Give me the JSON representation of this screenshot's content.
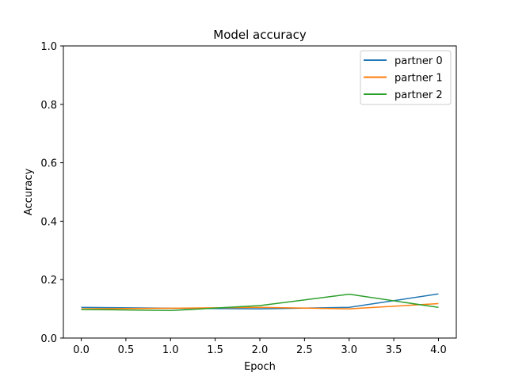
{
  "chart_data": {
    "type": "line",
    "title": "Model accuracy",
    "xlabel": "Epoch",
    "ylabel": "Accuracy",
    "xlim": [
      -0.2,
      4.2
    ],
    "ylim": [
      0.0,
      1.0
    ],
    "xticks": [
      "0.0",
      "0.5",
      "1.0",
      "1.5",
      "2.0",
      "2.5",
      "3.0",
      "3.5",
      "4.0"
    ],
    "yticks": [
      "0.0",
      "0.2",
      "0.4",
      "0.6",
      "0.8",
      "1.0"
    ],
    "grid": false,
    "legend_position": "top-right",
    "x": [
      0,
      1,
      2,
      3,
      4
    ],
    "series": [
      {
        "name": "partner 0",
        "color": "#1f77b4",
        "values": [
          0.105,
          0.102,
          0.1,
          0.105,
          0.151
        ]
      },
      {
        "name": "partner 1",
        "color": "#ff7f0e",
        "values": [
          0.1,
          0.102,
          0.105,
          0.1,
          0.118
        ]
      },
      {
        "name": "partner 2",
        "color": "#2ca02c",
        "values": [
          0.098,
          0.094,
          0.111,
          0.15,
          0.105
        ]
      }
    ]
  }
}
